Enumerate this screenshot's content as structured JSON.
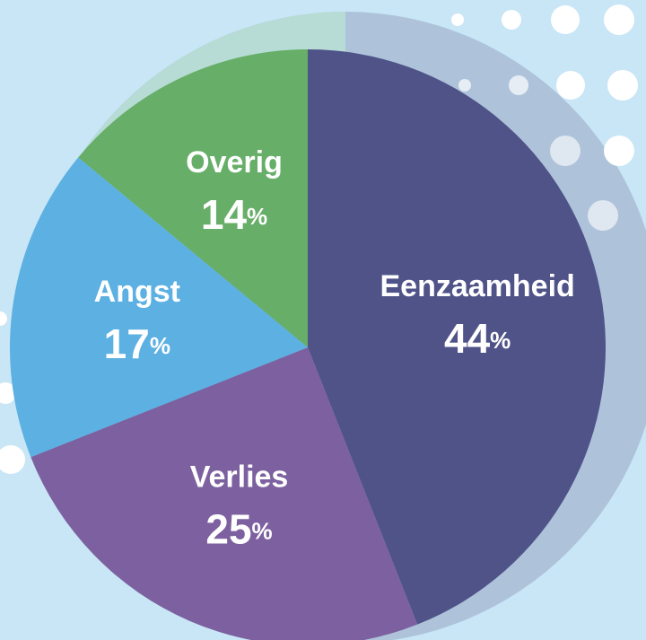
{
  "chart_data": {
    "type": "pie",
    "categories": [
      "Eenzaamheid",
      "Verlies",
      "Angst",
      "Overig"
    ],
    "values": [
      44,
      25,
      17,
      14
    ],
    "value_labels": [
      "44%",
      "25%",
      "17%",
      "14%"
    ],
    "colors": [
      "#4f5388",
      "#7c609f",
      "#5cb0e2",
      "#67ae68"
    ]
  }
}
